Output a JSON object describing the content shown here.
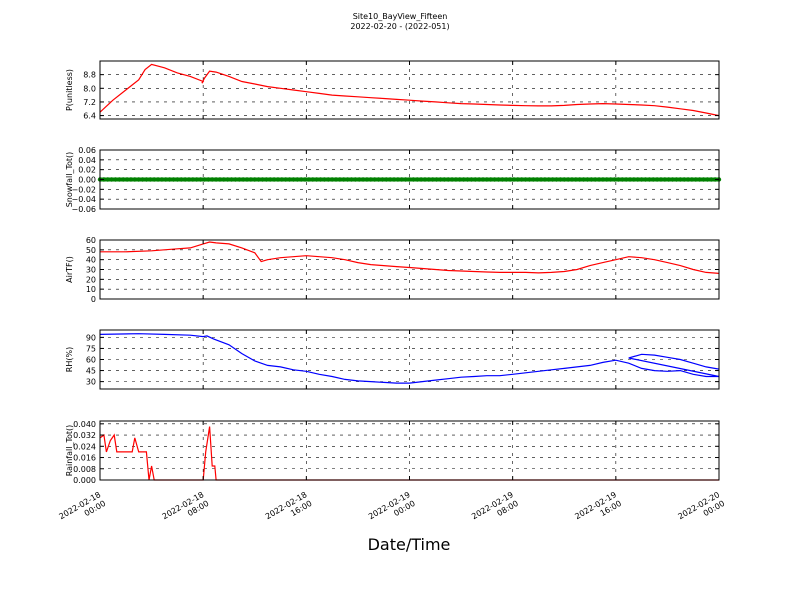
{
  "figure": {
    "title": "Site10_BayView_Fifteen",
    "subtitle": "2022-02-20 - (2022-051)",
    "xlabel": "Date/Time",
    "x_ticks": [
      "2022-02-18 00:00",
      "2022-02-18 08:00",
      "2022-02-18 16:00",
      "2022-02-19 00:00",
      "2022-02-19 08:00",
      "2022-02-19 16:00",
      "2022-02-20 00:00"
    ]
  },
  "chart_data": [
    {
      "type": "line",
      "ylabel": "P(unitless)",
      "xlim": [
        0,
        48
      ],
      "ylim": [
        6.2,
        9.6
      ],
      "yticks": [
        "6.4",
        "7.2",
        "8.0",
        "8.8"
      ],
      "ytick_values": [
        6.4,
        7.2,
        8.0,
        8.8
      ],
      "color": "#ff0000",
      "points": [
        [
          0,
          6.6
        ],
        [
          1,
          7.3
        ],
        [
          2,
          7.9
        ],
        [
          3,
          8.5
        ],
        [
          3.5,
          9.1
        ],
        [
          4,
          9.4
        ],
        [
          5,
          9.2
        ],
        [
          6,
          8.9
        ],
        [
          7,
          8.7
        ],
        [
          8,
          8.4
        ],
        [
          7.9,
          8.3
        ],
        [
          8.1,
          8.6
        ],
        [
          8.5,
          9.0
        ],
        [
          9,
          8.95
        ],
        [
          10,
          8.7
        ],
        [
          11,
          8.4
        ],
        [
          12,
          8.25
        ],
        [
          13,
          8.1
        ],
        [
          14,
          8.0
        ],
        [
          15,
          7.9
        ],
        [
          16,
          7.8
        ],
        [
          17,
          7.7
        ],
        [
          18,
          7.6
        ],
        [
          19,
          7.55
        ],
        [
          20,
          7.5
        ],
        [
          21,
          7.45
        ],
        [
          22,
          7.4
        ],
        [
          23,
          7.35
        ],
        [
          24,
          7.3
        ],
        [
          25,
          7.25
        ],
        [
          26,
          7.2
        ],
        [
          27,
          7.15
        ],
        [
          28,
          7.1
        ],
        [
          29,
          7.08
        ],
        [
          30,
          7.05
        ],
        [
          31,
          7.02
        ],
        [
          32,
          7.0
        ],
        [
          33,
          6.98
        ],
        [
          34,
          6.97
        ],
        [
          35,
          6.97
        ],
        [
          36,
          7.0
        ],
        [
          37,
          7.05
        ],
        [
          38,
          7.08
        ],
        [
          39,
          7.1
        ],
        [
          40,
          7.08
        ],
        [
          41,
          7.05
        ],
        [
          42,
          7.02
        ],
        [
          43,
          6.98
        ],
        [
          44,
          6.9
        ],
        [
          45,
          6.8
        ],
        [
          46,
          6.7
        ],
        [
          47,
          6.55
        ],
        [
          48,
          6.4
        ]
      ]
    },
    {
      "type": "scatter",
      "ylabel": "Snowfall_Tot()",
      "xlim": [
        0,
        48
      ],
      "ylim": [
        -0.06,
        0.06
      ],
      "yticks": [
        "−0.06",
        "−0.04",
        "−0.02",
        "0.00",
        "0.02",
        "0.04",
        "0.06"
      ],
      "ytick_values": [
        -0.06,
        -0.04,
        -0.02,
        0.0,
        0.02,
        0.04,
        0.06
      ],
      "color": "#008000",
      "constant_value": 0.0
    },
    {
      "type": "line",
      "ylabel": "AirTF()",
      "xlim": [
        0,
        48
      ],
      "ylim": [
        0,
        60
      ],
      "yticks": [
        "0",
        "10",
        "20",
        "30",
        "40",
        "50",
        "60"
      ],
      "ytick_values": [
        0,
        10,
        20,
        30,
        40,
        50,
        60
      ],
      "color": "#ff0000",
      "points": [
        [
          0,
          48
        ],
        [
          2,
          48
        ],
        [
          4,
          49
        ],
        [
          6,
          51
        ],
        [
          7,
          52
        ],
        [
          8,
          56
        ],
        [
          8.5,
          58
        ],
        [
          9,
          57
        ],
        [
          10,
          56
        ],
        [
          11,
          52
        ],
        [
          12,
          47
        ],
        [
          12.5,
          38
        ],
        [
          13,
          40
        ],
        [
          14,
          42
        ],
        [
          15,
          43
        ],
        [
          16,
          44
        ],
        [
          17,
          43
        ],
        [
          18,
          42
        ],
        [
          19,
          40
        ],
        [
          20,
          37
        ],
        [
          21,
          35
        ],
        [
          22,
          34
        ],
        [
          23,
          33
        ],
        [
          24,
          32
        ],
        [
          25,
          31
        ],
        [
          26,
          30
        ],
        [
          27,
          29
        ],
        [
          28,
          28.5
        ],
        [
          29,
          28
        ],
        [
          30,
          27.5
        ],
        [
          31,
          27
        ],
        [
          32,
          27
        ],
        [
          33,
          27
        ],
        [
          34,
          26.5
        ],
        [
          35,
          27
        ],
        [
          36,
          28
        ],
        [
          37,
          30
        ],
        [
          38,
          34
        ],
        [
          39,
          37
        ],
        [
          40,
          40
        ],
        [
          41,
          43
        ],
        [
          42,
          42
        ],
        [
          43,
          40
        ],
        [
          44,
          37
        ],
        [
          45,
          34
        ],
        [
          46,
          30
        ],
        [
          47,
          27
        ],
        [
          48,
          26
        ]
      ]
    },
    {
      "type": "line",
      "ylabel": "RH(%)",
      "xlim": [
        0,
        48
      ],
      "ylim": [
        20,
        100
      ],
      "yticks": [
        "30",
        "45",
        "60",
        "75",
        "90"
      ],
      "ytick_values": [
        30,
        45,
        60,
        75,
        90
      ],
      "color": "#0000ff",
      "points": [
        [
          0,
          94
        ],
        [
          3,
          95
        ],
        [
          5,
          94
        ],
        [
          7,
          93
        ],
        [
          8,
          91
        ],
        [
          8.3,
          92
        ],
        [
          8.8,
          88
        ],
        [
          10,
          80
        ],
        [
          11,
          68
        ],
        [
          12,
          58
        ],
        [
          13,
          52
        ],
        [
          14,
          50
        ],
        [
          15,
          46
        ],
        [
          16,
          44
        ],
        [
          17,
          40
        ],
        [
          18,
          37
        ],
        [
          19,
          33
        ],
        [
          20,
          31
        ],
        [
          21,
          30
        ],
        [
          22,
          29
        ],
        [
          23,
          28
        ],
        [
          24,
          28
        ],
        [
          25,
          30
        ],
        [
          26,
          32
        ],
        [
          27,
          34
        ],
        [
          28,
          36
        ],
        [
          29,
          37
        ],
        [
          30,
          38
        ],
        [
          31,
          38
        ],
        [
          32,
          40
        ],
        [
          33,
          42
        ],
        [
          34,
          44
        ],
        [
          35,
          46
        ],
        [
          36,
          48
        ],
        [
          37,
          50
        ],
        [
          38,
          52
        ],
        [
          39,
          56
        ],
        [
          40,
          59
        ],
        [
          41,
          55
        ],
        [
          42,
          48
        ],
        [
          43,
          45
        ],
        [
          44,
          44
        ],
        [
          45,
          45
        ],
        [
          46,
          40
        ],
        [
          47,
          37
        ],
        [
          48,
          37
        ],
        [
          41,
          62
        ],
        [
          42,
          67
        ],
        [
          43,
          66
        ],
        [
          44,
          63
        ],
        [
          45,
          60
        ],
        [
          46,
          55
        ],
        [
          47,
          50
        ],
        [
          48,
          47
        ]
      ]
    },
    {
      "type": "line",
      "ylabel": "Rainfall_Tot()",
      "xlim": [
        0,
        48
      ],
      "ylim": [
        0,
        0.042
      ],
      "yticks": [
        "0.000",
        "0.008",
        "0.016",
        "0.024",
        "0.032",
        "0.040"
      ],
      "ytick_values": [
        0.0,
        0.008,
        0.016,
        0.024,
        0.032,
        0.04
      ],
      "color": "#ff0000",
      "points": [
        [
          0,
          0.03
        ],
        [
          0.3,
          0.032
        ],
        [
          0.5,
          0.02
        ],
        [
          0.8,
          0.028
        ],
        [
          1.1,
          0.032
        ],
        [
          1.3,
          0.02
        ],
        [
          2,
          0.02
        ],
        [
          2.5,
          0.02
        ],
        [
          2.7,
          0.03
        ],
        [
          3,
          0.02
        ],
        [
          3.3,
          0.02
        ],
        [
          3.6,
          0.02
        ],
        [
          3.8,
          0.0
        ],
        [
          4,
          0.01
        ],
        [
          4.2,
          0.0
        ],
        [
          8,
          0.0
        ],
        [
          8.2,
          0.02
        ],
        [
          8.5,
          0.038
        ],
        [
          8.7,
          0.01
        ],
        [
          8.9,
          0.01
        ],
        [
          9,
          0.0
        ],
        [
          48,
          0.0
        ]
      ]
    }
  ]
}
